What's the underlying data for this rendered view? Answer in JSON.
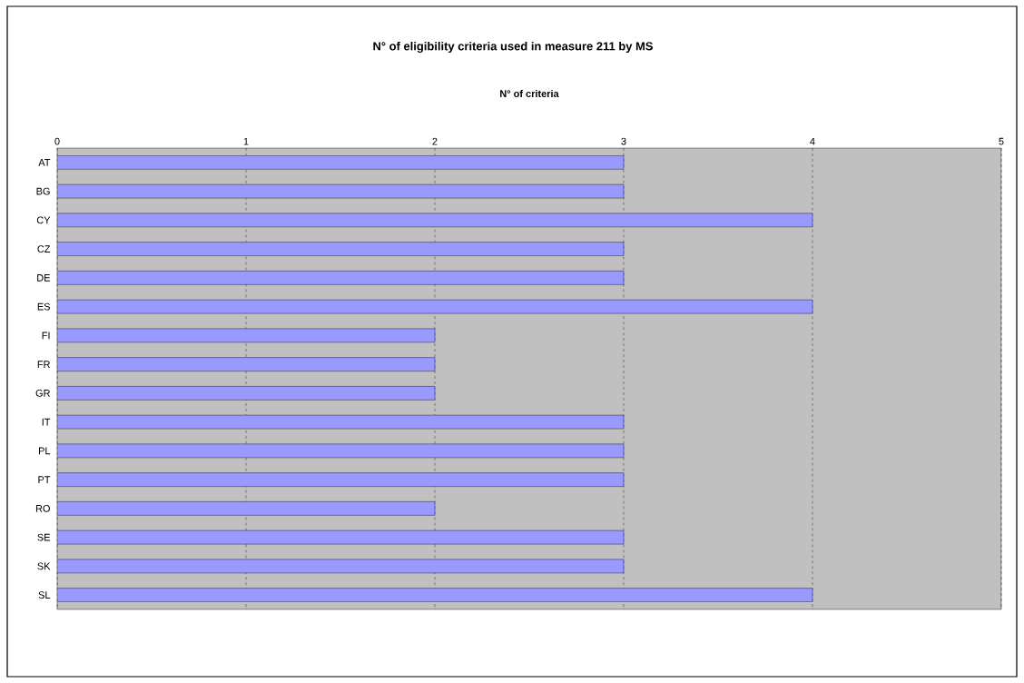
{
  "chart_data": {
    "type": "bar",
    "orientation": "horizontal",
    "title": "N° of eligibility criteria used in measure 211 by MS",
    "xlabel": "N° of criteria",
    "categories": [
      "AT",
      "BG",
      "CY",
      "CZ",
      "DE",
      "ES",
      "FI",
      "FR",
      "GR",
      "IT",
      "PL",
      "PT",
      "RO",
      "SE",
      "SK",
      "SL"
    ],
    "values": [
      3,
      3,
      4,
      3,
      3,
      4,
      2,
      2,
      2,
      3,
      3,
      3,
      2,
      3,
      3,
      4
    ],
    "color": "#9999ff",
    "xlim": [
      0,
      5
    ],
    "xticks": [
      0,
      1,
      2,
      3,
      4,
      5
    ],
    "grid": "x"
  }
}
